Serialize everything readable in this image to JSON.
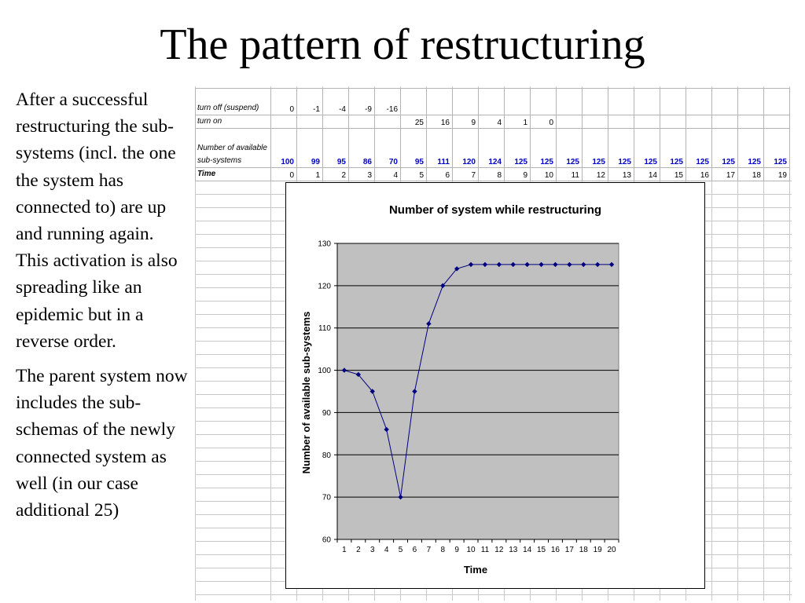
{
  "slide": {
    "title": "The pattern of restructuring",
    "paragraphs": [
      "After a successful restructuring the sub-systems (incl. the one the system has connected to) are up and running again. This activation is also spreading like an epidemic but in a reverse order.",
      "The parent system now includes the sub-schemas of the newly connected system as well (in our case additional 25)"
    ]
  },
  "table": {
    "rows": [
      {
        "label": "turn off (suspend)",
        "values": [
          "0",
          "-1",
          "-4",
          "-9",
          "-16",
          "",
          "",
          "",
          "",
          "",
          "",
          "",
          "",
          "",
          "",
          "",
          "",
          "",
          "",
          ""
        ]
      },
      {
        "label": "turn on",
        "values": [
          "",
          "",
          "",
          "",
          "",
          "25",
          "16",
          "9",
          "4",
          "1",
          "0",
          "",
          "",
          "",
          "",
          "",
          "",
          "",
          "",
          ""
        ]
      },
      {
        "label": "Number of available sub-systems",
        "values": [
          "100",
          "99",
          "95",
          "86",
          "70",
          "95",
          "111",
          "120",
          "124",
          "125",
          "125",
          "125",
          "125",
          "125",
          "125",
          "125",
          "125",
          "125",
          "125",
          "125"
        ]
      },
      {
        "label": "Time",
        "values": [
          "0",
          "1",
          "2",
          "3",
          "4",
          "5",
          "6",
          "7",
          "8",
          "9",
          "10",
          "11",
          "12",
          "13",
          "14",
          "15",
          "16",
          "17",
          "18",
          "19"
        ]
      }
    ]
  },
  "chart_data": {
    "type": "line",
    "title": "Number of system while restructuring",
    "xlabel": "Time",
    "ylabel": "Number of available sub-systems",
    "x": [
      1,
      2,
      3,
      4,
      5,
      6,
      7,
      8,
      9,
      10,
      11,
      12,
      13,
      14,
      15,
      16,
      17,
      18,
      19,
      20
    ],
    "series": [
      {
        "values": [
          100,
          99,
          95,
          86,
          70,
          95,
          111,
          120,
          124,
          125,
          125,
          125,
          125,
          125,
          125,
          125,
          125,
          125,
          125,
          125
        ]
      }
    ],
    "ylim": [
      60,
      130
    ],
    "yticks": [
      60,
      70,
      80,
      90,
      100,
      110,
      120,
      130
    ],
    "grid": "horizontal",
    "legend": "none",
    "colors": {
      "line": "#000080",
      "plot_bg": "#c0c0c0",
      "gridline": "#000000"
    }
  }
}
